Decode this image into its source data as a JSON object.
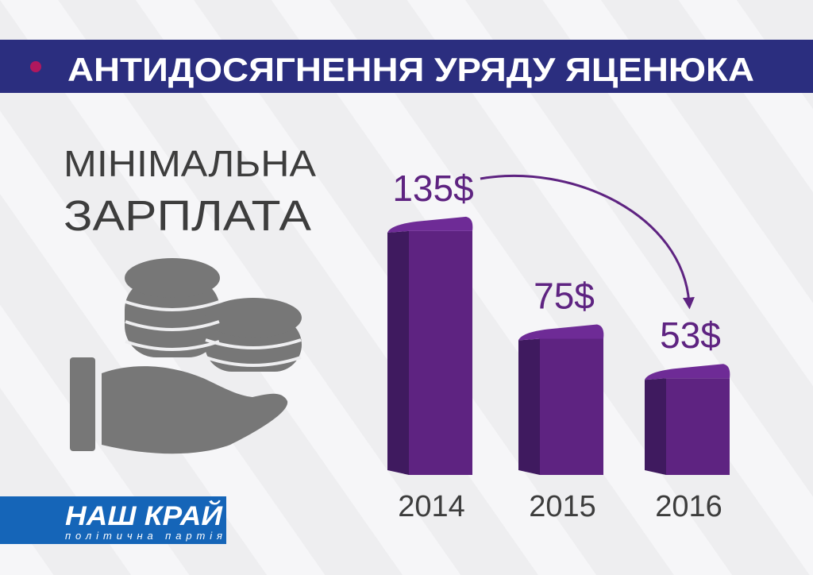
{
  "header": {
    "title": "АНТИДОСЯГНЕННЯ УРЯДУ ЯЦЕНЮКА"
  },
  "chart_data": {
    "type": "bar",
    "title_lines": [
      "МІНІМАЛЬНА",
      "ЗАРПЛАТА"
    ],
    "categories": [
      "2014",
      "2015",
      "2016"
    ],
    "values": [
      135,
      75,
      53
    ],
    "value_labels": [
      "135$",
      "75$",
      "53$"
    ],
    "color": "#5e2381"
  },
  "logo": {
    "name": "НАШ КРАЙ",
    "tagline": "політична партія"
  }
}
